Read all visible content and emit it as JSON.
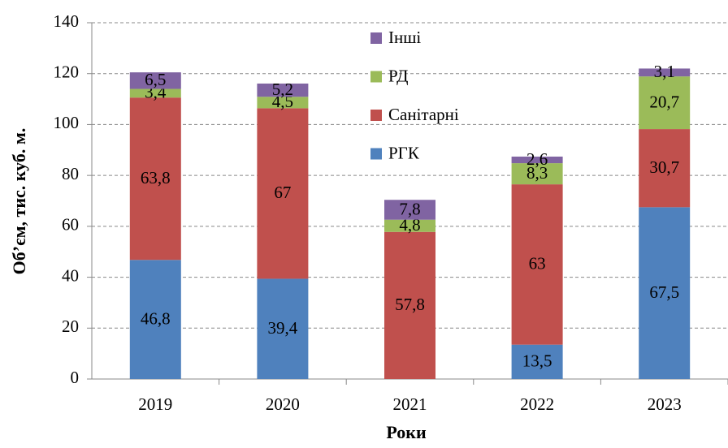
{
  "chart_data": {
    "type": "stacked_bar",
    "x_label": "Роки",
    "y_label": "Об’єм, тис. куб. м.",
    "categories": [
      "2019",
      "2020",
      "2021",
      "2022",
      "2023"
    ],
    "series": [
      {
        "name": "РГК",
        "color": "#4f81bd",
        "values": [
          46.8,
          39.4,
          null,
          13.5,
          67.5
        ],
        "value_labels": [
          "46,8",
          "39,4",
          null,
          "13,5",
          "67,5"
        ]
      },
      {
        "name": "Санітарні",
        "color": "#c0504d",
        "values": [
          63.8,
          67,
          57.8,
          63,
          30.7
        ],
        "value_labels": [
          "63,8",
          "67",
          "57,8",
          "63",
          "30,7"
        ]
      },
      {
        "name": "РД",
        "color": "#9bbb59",
        "values": [
          3.4,
          4.5,
          4.8,
          8.3,
          20.7
        ],
        "value_labels": [
          "3,4",
          "4,5",
          "4,8",
          "8,3",
          "20,7"
        ]
      },
      {
        "name": "Інші",
        "color": "#8064a2",
        "values": [
          6.5,
          5.2,
          7.8,
          2.6,
          3.1
        ],
        "value_labels": [
          "6,5",
          "5,2",
          "7,8",
          "2,6",
          "3,1"
        ]
      }
    ],
    "ylim": [
      0,
      140
    ],
    "yticks": [
      0,
      20,
      40,
      60,
      80,
      100,
      120,
      140
    ],
    "grid": true,
    "legend": "top"
  }
}
